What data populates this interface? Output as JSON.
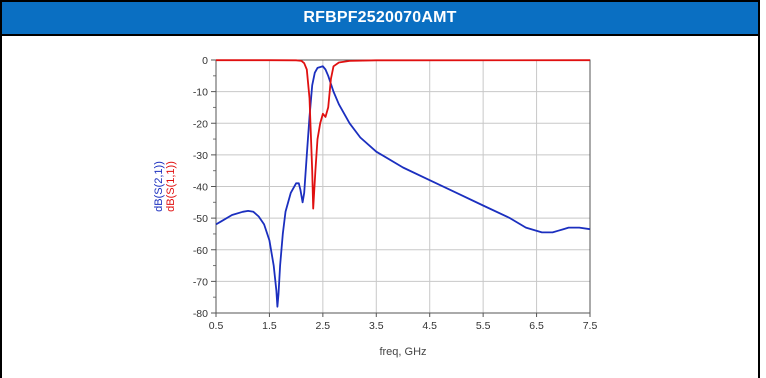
{
  "window": {
    "title": "RFBPF2520070AMT"
  },
  "colors": {
    "header_bg": "#0a6fc2",
    "s21": "#1b2fbf",
    "s11": "#e01010",
    "grid": "#c8c8c8"
  },
  "chart_data": {
    "type": "line",
    "title": "RFBPF2520070AMT",
    "xlabel": "freq, GHz",
    "ylabels": [
      "dB(S(2,1))",
      "dB(S(1,1))"
    ],
    "xlim": [
      0.5,
      7.5
    ],
    "ylim": [
      -80,
      0
    ],
    "grid": true,
    "x_ticks": [
      "0.5",
      "1.5",
      "2.5",
      "3.5",
      "4.5",
      "5.5",
      "6.5",
      "7.5"
    ],
    "x_tick_values": [
      0.5,
      1.5,
      2.5,
      3.5,
      4.5,
      5.5,
      6.5,
      7.5
    ],
    "y_ticks": [
      "0",
      "-10",
      "-20",
      "-30",
      "-40",
      "-50",
      "-60",
      "-70",
      "-80"
    ],
    "y_tick_values": [
      0,
      -10,
      -20,
      -30,
      -40,
      -50,
      -60,
      -70,
      -80
    ],
    "series": [
      {
        "name": "dB(S(2,1))",
        "color": "#1b2fbf",
        "points": [
          [
            0.5,
            -52
          ],
          [
            0.6,
            -51
          ],
          [
            0.8,
            -49
          ],
          [
            1.0,
            -48
          ],
          [
            1.1,
            -47.7
          ],
          [
            1.2,
            -48
          ],
          [
            1.3,
            -49.5
          ],
          [
            1.4,
            -52
          ],
          [
            1.5,
            -57
          ],
          [
            1.58,
            -65
          ],
          [
            1.63,
            -73
          ],
          [
            1.65,
            -78
          ],
          [
            1.67,
            -74
          ],
          [
            1.7,
            -65
          ],
          [
            1.75,
            -55
          ],
          [
            1.8,
            -48
          ],
          [
            1.9,
            -42
          ],
          [
            2.0,
            -39
          ],
          [
            2.05,
            -39
          ],
          [
            2.08,
            -41
          ],
          [
            2.12,
            -45
          ],
          [
            2.15,
            -42
          ],
          [
            2.2,
            -30
          ],
          [
            2.25,
            -18
          ],
          [
            2.3,
            -8
          ],
          [
            2.35,
            -4
          ],
          [
            2.4,
            -2.5
          ],
          [
            2.5,
            -2
          ],
          [
            2.55,
            -3
          ],
          [
            2.6,
            -5
          ],
          [
            2.7,
            -10
          ],
          [
            2.8,
            -14
          ],
          [
            3.0,
            -20
          ],
          [
            3.2,
            -24.5
          ],
          [
            3.5,
            -29
          ],
          [
            4.0,
            -34
          ],
          [
            4.5,
            -38
          ],
          [
            5.0,
            -42
          ],
          [
            5.5,
            -46
          ],
          [
            6.0,
            -50
          ],
          [
            6.3,
            -53
          ],
          [
            6.6,
            -54.5
          ],
          [
            6.8,
            -54.5
          ],
          [
            6.9,
            -54
          ],
          [
            7.0,
            -53.5
          ],
          [
            7.1,
            -53
          ],
          [
            7.3,
            -53
          ],
          [
            7.5,
            -53.5
          ]
        ]
      },
      {
        "name": "dB(S(1,1))",
        "color": "#e01010",
        "points": [
          [
            0.5,
            -0.05
          ],
          [
            1.5,
            -0.05
          ],
          [
            2.0,
            -0.1
          ],
          [
            2.1,
            -0.3
          ],
          [
            2.15,
            -1
          ],
          [
            2.2,
            -3
          ],
          [
            2.25,
            -12
          ],
          [
            2.3,
            -35
          ],
          [
            2.32,
            -47
          ],
          [
            2.36,
            -35
          ],
          [
            2.4,
            -25
          ],
          [
            2.45,
            -20
          ],
          [
            2.5,
            -17
          ],
          [
            2.55,
            -18
          ],
          [
            2.6,
            -15
          ],
          [
            2.65,
            -6
          ],
          [
            2.7,
            -2
          ],
          [
            2.8,
            -0.8
          ],
          [
            3.0,
            -0.3
          ],
          [
            3.5,
            -0.1
          ],
          [
            7.5,
            -0.05
          ]
        ]
      }
    ]
  }
}
